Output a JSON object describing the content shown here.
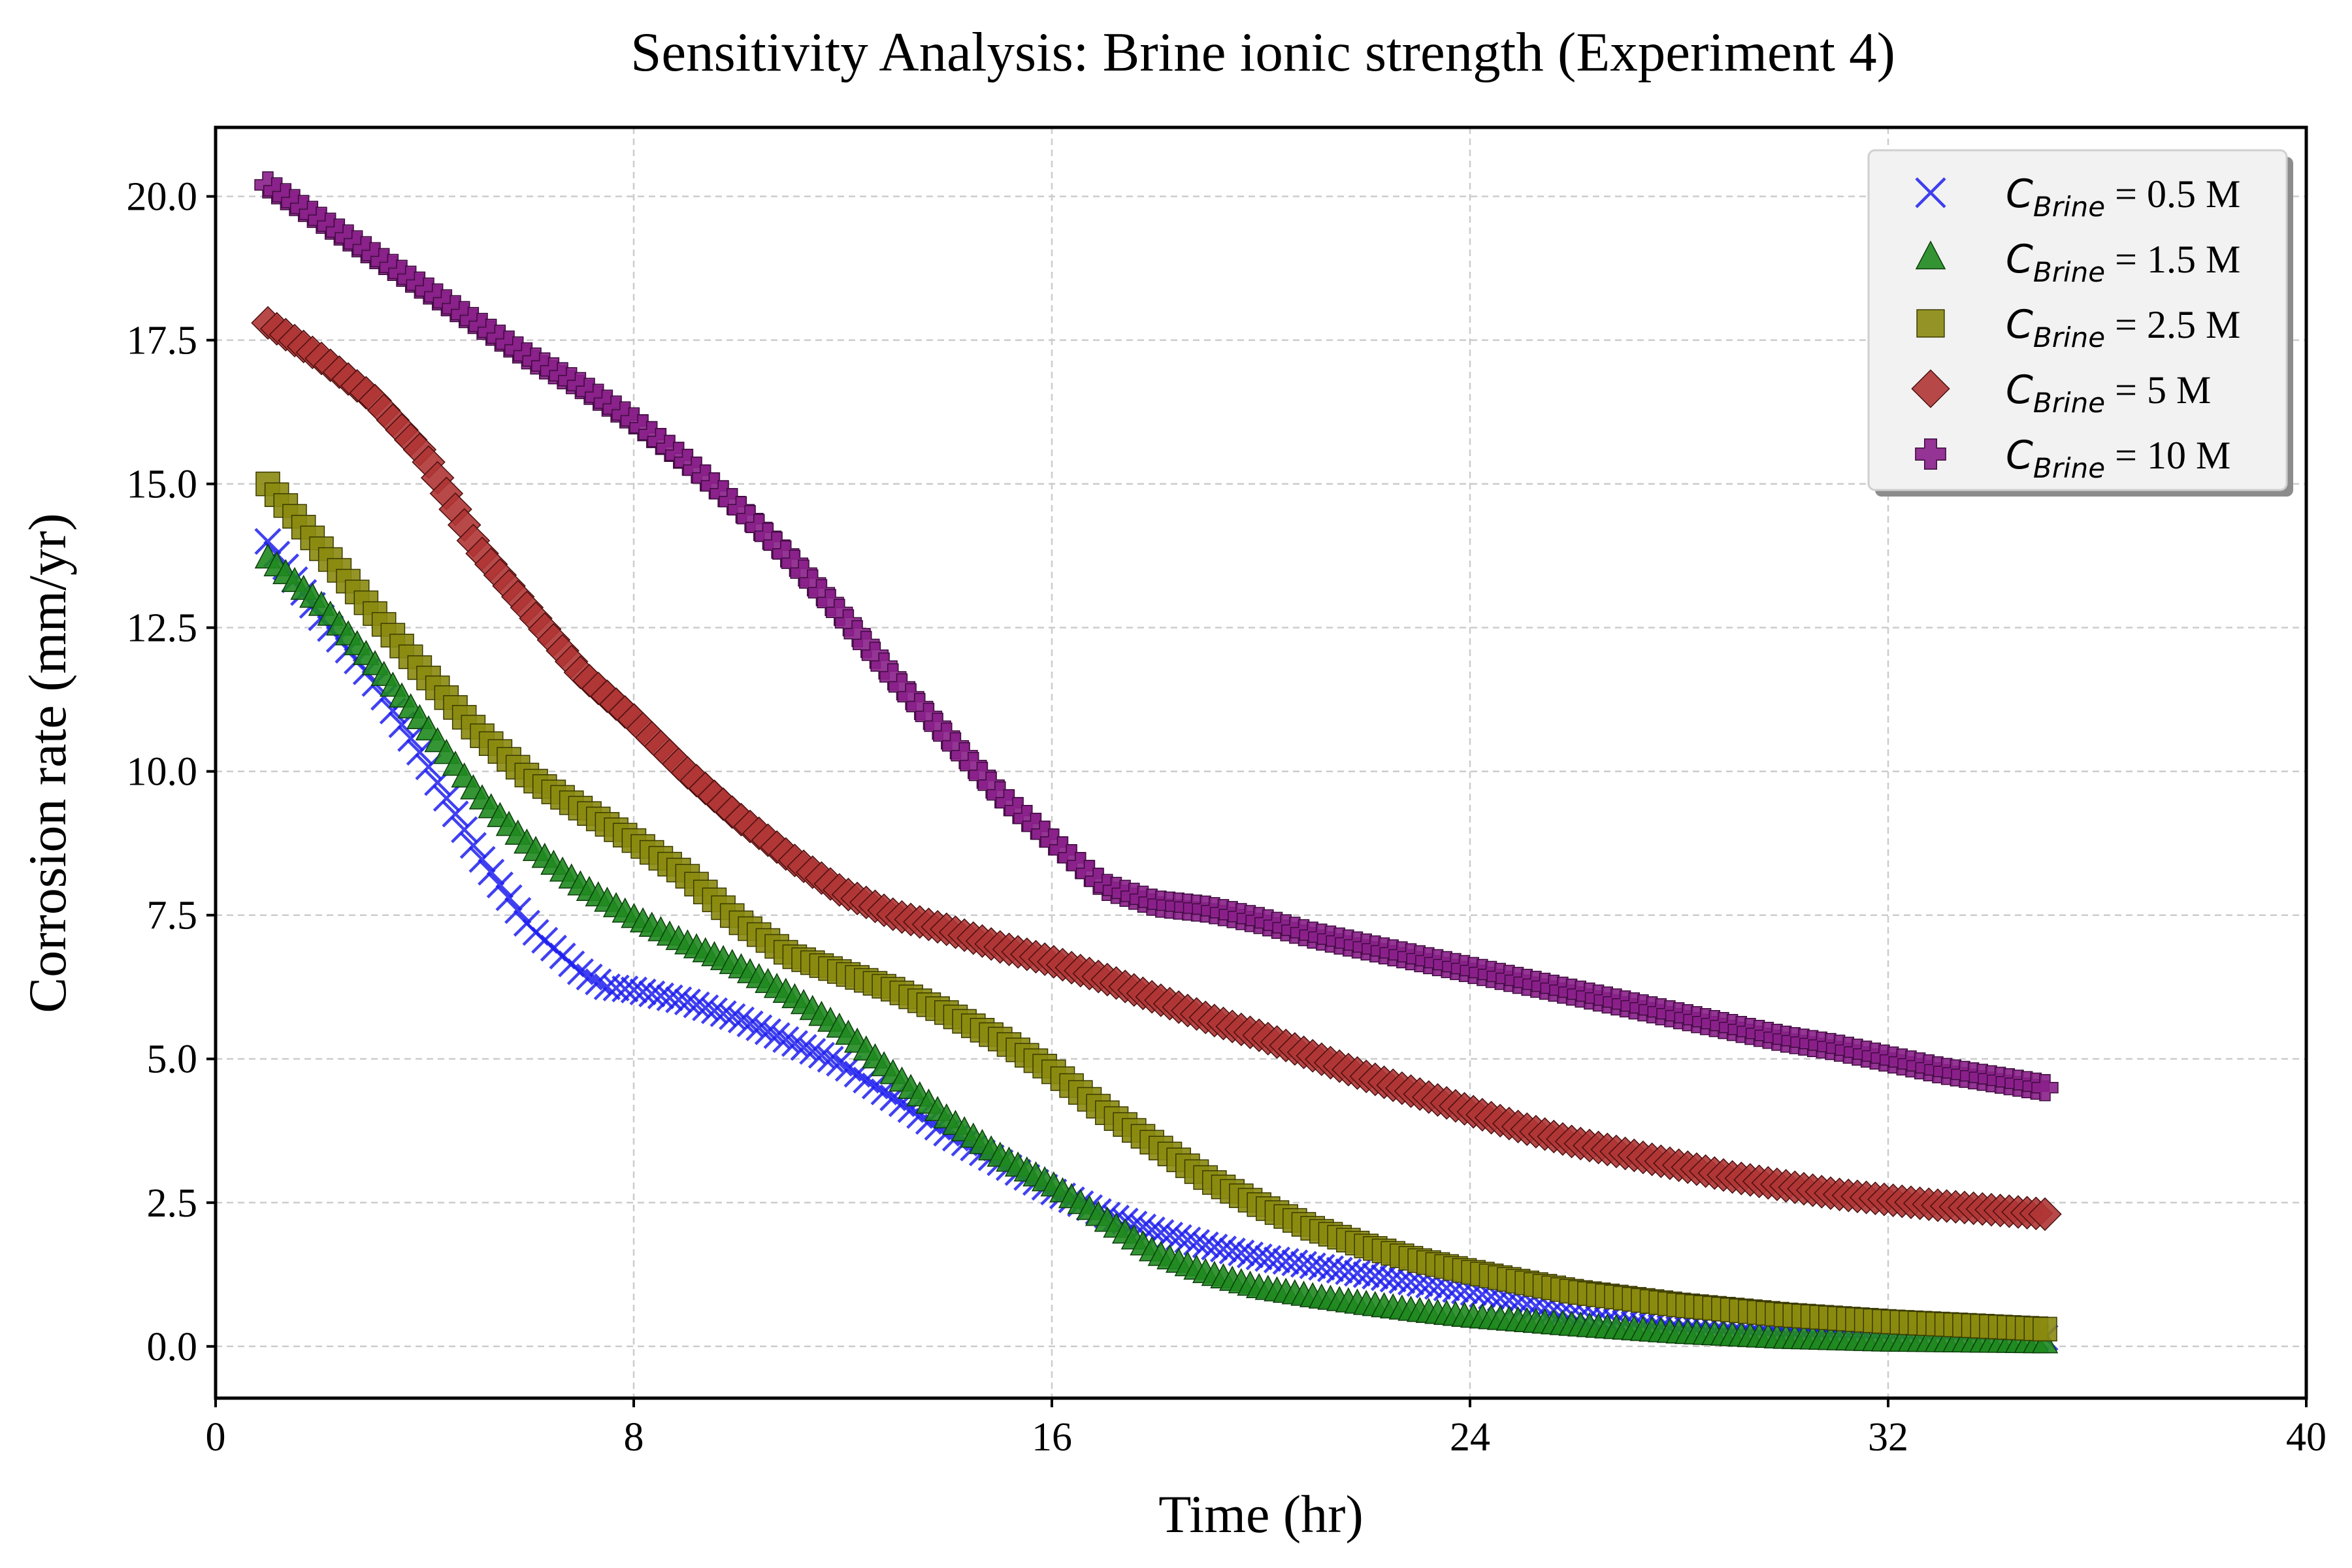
{
  "chart_data": {
    "type": "scatter",
    "title": "Sensitivity Analysis: Brine ionic strength (Experiment 4)",
    "xlabel": "Time (hr)",
    "ylabel": "Corrosion rate (mm/yr)",
    "xlim": [
      0,
      40
    ],
    "ylim": [
      -0.9,
      21.2
    ],
    "xticks": [
      0,
      8,
      16,
      24,
      32,
      40
    ],
    "xtick_labels": [
      "0",
      "8",
      "16",
      "24",
      "32",
      "40"
    ],
    "yticks": [
      0,
      2.5,
      5,
      7.5,
      10,
      12.5,
      15,
      17.5,
      20
    ],
    "ytick_labels": [
      "0.0",
      "2.5",
      "5.0",
      "7.5",
      "10.0",
      "12.5",
      "15.0",
      "17.5",
      "20.0"
    ],
    "grid": true,
    "legend_position": "top-right",
    "x_start": 1,
    "x_end": 35,
    "points_per_series": 200,
    "series": [
      {
        "name_main": "C",
        "name_sub": "Brine",
        "name_suffix": " = 0.5 M",
        "marker": "x",
        "color": "#2020ee",
        "edge": "#2020ee",
        "anchors": [
          [
            1,
            14.0
          ],
          [
            2,
            12.7
          ],
          [
            3,
            11.6
          ],
          [
            4,
            10.2
          ],
          [
            5,
            8.6
          ],
          [
            6,
            7.3
          ],
          [
            7,
            6.5
          ],
          [
            7.5,
            6.25
          ],
          [
            8,
            6.2
          ],
          [
            9,
            6.0
          ],
          [
            10,
            5.7
          ],
          [
            11,
            5.3
          ],
          [
            12,
            4.9
          ],
          [
            13,
            4.3
          ],
          [
            14,
            3.7
          ],
          [
            15,
            3.2
          ],
          [
            16,
            2.7
          ],
          [
            17,
            2.3
          ],
          [
            18,
            2.0
          ],
          [
            19,
            1.75
          ],
          [
            20,
            1.55
          ],
          [
            21,
            1.4
          ],
          [
            22,
            1.25
          ],
          [
            23,
            1.1
          ],
          [
            24,
            0.95
          ],
          [
            25,
            0.75
          ],
          [
            26,
            0.55
          ],
          [
            27,
            0.4
          ],
          [
            28,
            0.3
          ],
          [
            30,
            0.22
          ],
          [
            32,
            0.18
          ],
          [
            35,
            0.15
          ]
        ]
      },
      {
        "name_main": "C",
        "name_sub": "Brine",
        "name_suffix": " = 1.5 M",
        "marker": "triangle",
        "color": "#1f8a1f",
        "edge": "#0b3d0b",
        "anchors": [
          [
            1,
            13.7
          ],
          [
            2,
            12.9
          ],
          [
            3,
            11.9
          ],
          [
            4,
            10.8
          ],
          [
            5,
            9.6
          ],
          [
            6,
            8.7
          ],
          [
            7,
            8.0
          ],
          [
            8,
            7.45
          ],
          [
            9,
            7.0
          ],
          [
            10,
            6.6
          ],
          [
            11,
            6.1
          ],
          [
            12,
            5.5
          ],
          [
            13,
            4.7
          ],
          [
            14,
            3.95
          ],
          [
            15,
            3.3
          ],
          [
            16,
            2.8
          ],
          [
            17,
            2.2
          ],
          [
            18,
            1.6
          ],
          [
            19,
            1.25
          ],
          [
            20,
            1.0
          ],
          [
            21,
            0.85
          ],
          [
            22,
            0.72
          ],
          [
            23,
            0.6
          ],
          [
            24,
            0.5
          ],
          [
            26,
            0.35
          ],
          [
            28,
            0.22
          ],
          [
            30,
            0.13
          ],
          [
            32,
            0.08
          ],
          [
            35,
            0.05
          ]
        ]
      },
      {
        "name_main": "C",
        "name_sub": "Brine",
        "name_suffix": " = 2.5 M",
        "marker": "square",
        "color": "#8a8a10",
        "edge": "#3a3a00",
        "anchors": [
          [
            1,
            15.0
          ],
          [
            2,
            13.9
          ],
          [
            3,
            12.8
          ],
          [
            4,
            11.7
          ],
          [
            5,
            10.7
          ],
          [
            6,
            9.9
          ],
          [
            7,
            9.35
          ],
          [
            8,
            8.8
          ],
          [
            9,
            8.2
          ],
          [
            10,
            7.4
          ],
          [
            11,
            6.8
          ],
          [
            12,
            6.5
          ],
          [
            13,
            6.2
          ],
          [
            14,
            5.8
          ],
          [
            15,
            5.35
          ],
          [
            16,
            4.8
          ],
          [
            17,
            4.1
          ],
          [
            18,
            3.5
          ],
          [
            19,
            2.9
          ],
          [
            20,
            2.45
          ],
          [
            21,
            2.05
          ],
          [
            22,
            1.75
          ],
          [
            23,
            1.5
          ],
          [
            24,
            1.3
          ],
          [
            25,
            1.12
          ],
          [
            26,
            0.95
          ],
          [
            28,
            0.72
          ],
          [
            30,
            0.55
          ],
          [
            32,
            0.43
          ],
          [
            35,
            0.3
          ]
        ]
      },
      {
        "name_main": "C",
        "name_sub": "Brine",
        "name_suffix": " = 5 M",
        "marker": "diamond",
        "color": "#b03535",
        "edge": "#4a0f0f",
        "anchors": [
          [
            1,
            17.8
          ],
          [
            2,
            17.2
          ],
          [
            3,
            16.5
          ],
          [
            4,
            15.5
          ],
          [
            5,
            13.9
          ],
          [
            6,
            12.8
          ],
          [
            7,
            11.7
          ],
          [
            8,
            10.9
          ],
          [
            9,
            10.0
          ],
          [
            10,
            9.2
          ],
          [
            11,
            8.5
          ],
          [
            12,
            7.9
          ],
          [
            13,
            7.5
          ],
          [
            14,
            7.25
          ],
          [
            15,
            6.95
          ],
          [
            16,
            6.7
          ],
          [
            17,
            6.4
          ],
          [
            18,
            6.05
          ],
          [
            19,
            5.7
          ],
          [
            20,
            5.4
          ],
          [
            21,
            5.05
          ],
          [
            22,
            4.7
          ],
          [
            23,
            4.4
          ],
          [
            24,
            4.1
          ],
          [
            25,
            3.8
          ],
          [
            26,
            3.55
          ],
          [
            27,
            3.35
          ],
          [
            28,
            3.15
          ],
          [
            29,
            2.95
          ],
          [
            30,
            2.8
          ],
          [
            31,
            2.65
          ],
          [
            32,
            2.55
          ],
          [
            33,
            2.45
          ],
          [
            35,
            2.3
          ]
        ]
      },
      {
        "name_main": "C",
        "name_sub": "Brine",
        "name_suffix": " = 10 M",
        "marker": "plus",
        "color": "#8a1f8a",
        "edge": "#3d0b3d",
        "anchors": [
          [
            1,
            20.2
          ],
          [
            2,
            19.6
          ],
          [
            3,
            19.0
          ],
          [
            4,
            18.4
          ],
          [
            5,
            17.8
          ],
          [
            6,
            17.2
          ],
          [
            7,
            16.7
          ],
          [
            8,
            16.1
          ],
          [
            9,
            15.4
          ],
          [
            10,
            14.6
          ],
          [
            11,
            13.7
          ],
          [
            12,
            12.7
          ],
          [
            13,
            11.6
          ],
          [
            14,
            10.6
          ],
          [
            15,
            9.6
          ],
          [
            16,
            8.8
          ],
          [
            17,
            8.0
          ],
          [
            18,
            7.7
          ],
          [
            19,
            7.6
          ],
          [
            20,
            7.4
          ],
          [
            21,
            7.15
          ],
          [
            22,
            6.95
          ],
          [
            23,
            6.75
          ],
          [
            24,
            6.55
          ],
          [
            25,
            6.35
          ],
          [
            26,
            6.15
          ],
          [
            27,
            5.95
          ],
          [
            28,
            5.75
          ],
          [
            29,
            5.55
          ],
          [
            30,
            5.35
          ],
          [
            31,
            5.2
          ],
          [
            32,
            5.0
          ],
          [
            33,
            4.8
          ],
          [
            34,
            4.65
          ],
          [
            35,
            4.5
          ]
        ]
      }
    ]
  }
}
